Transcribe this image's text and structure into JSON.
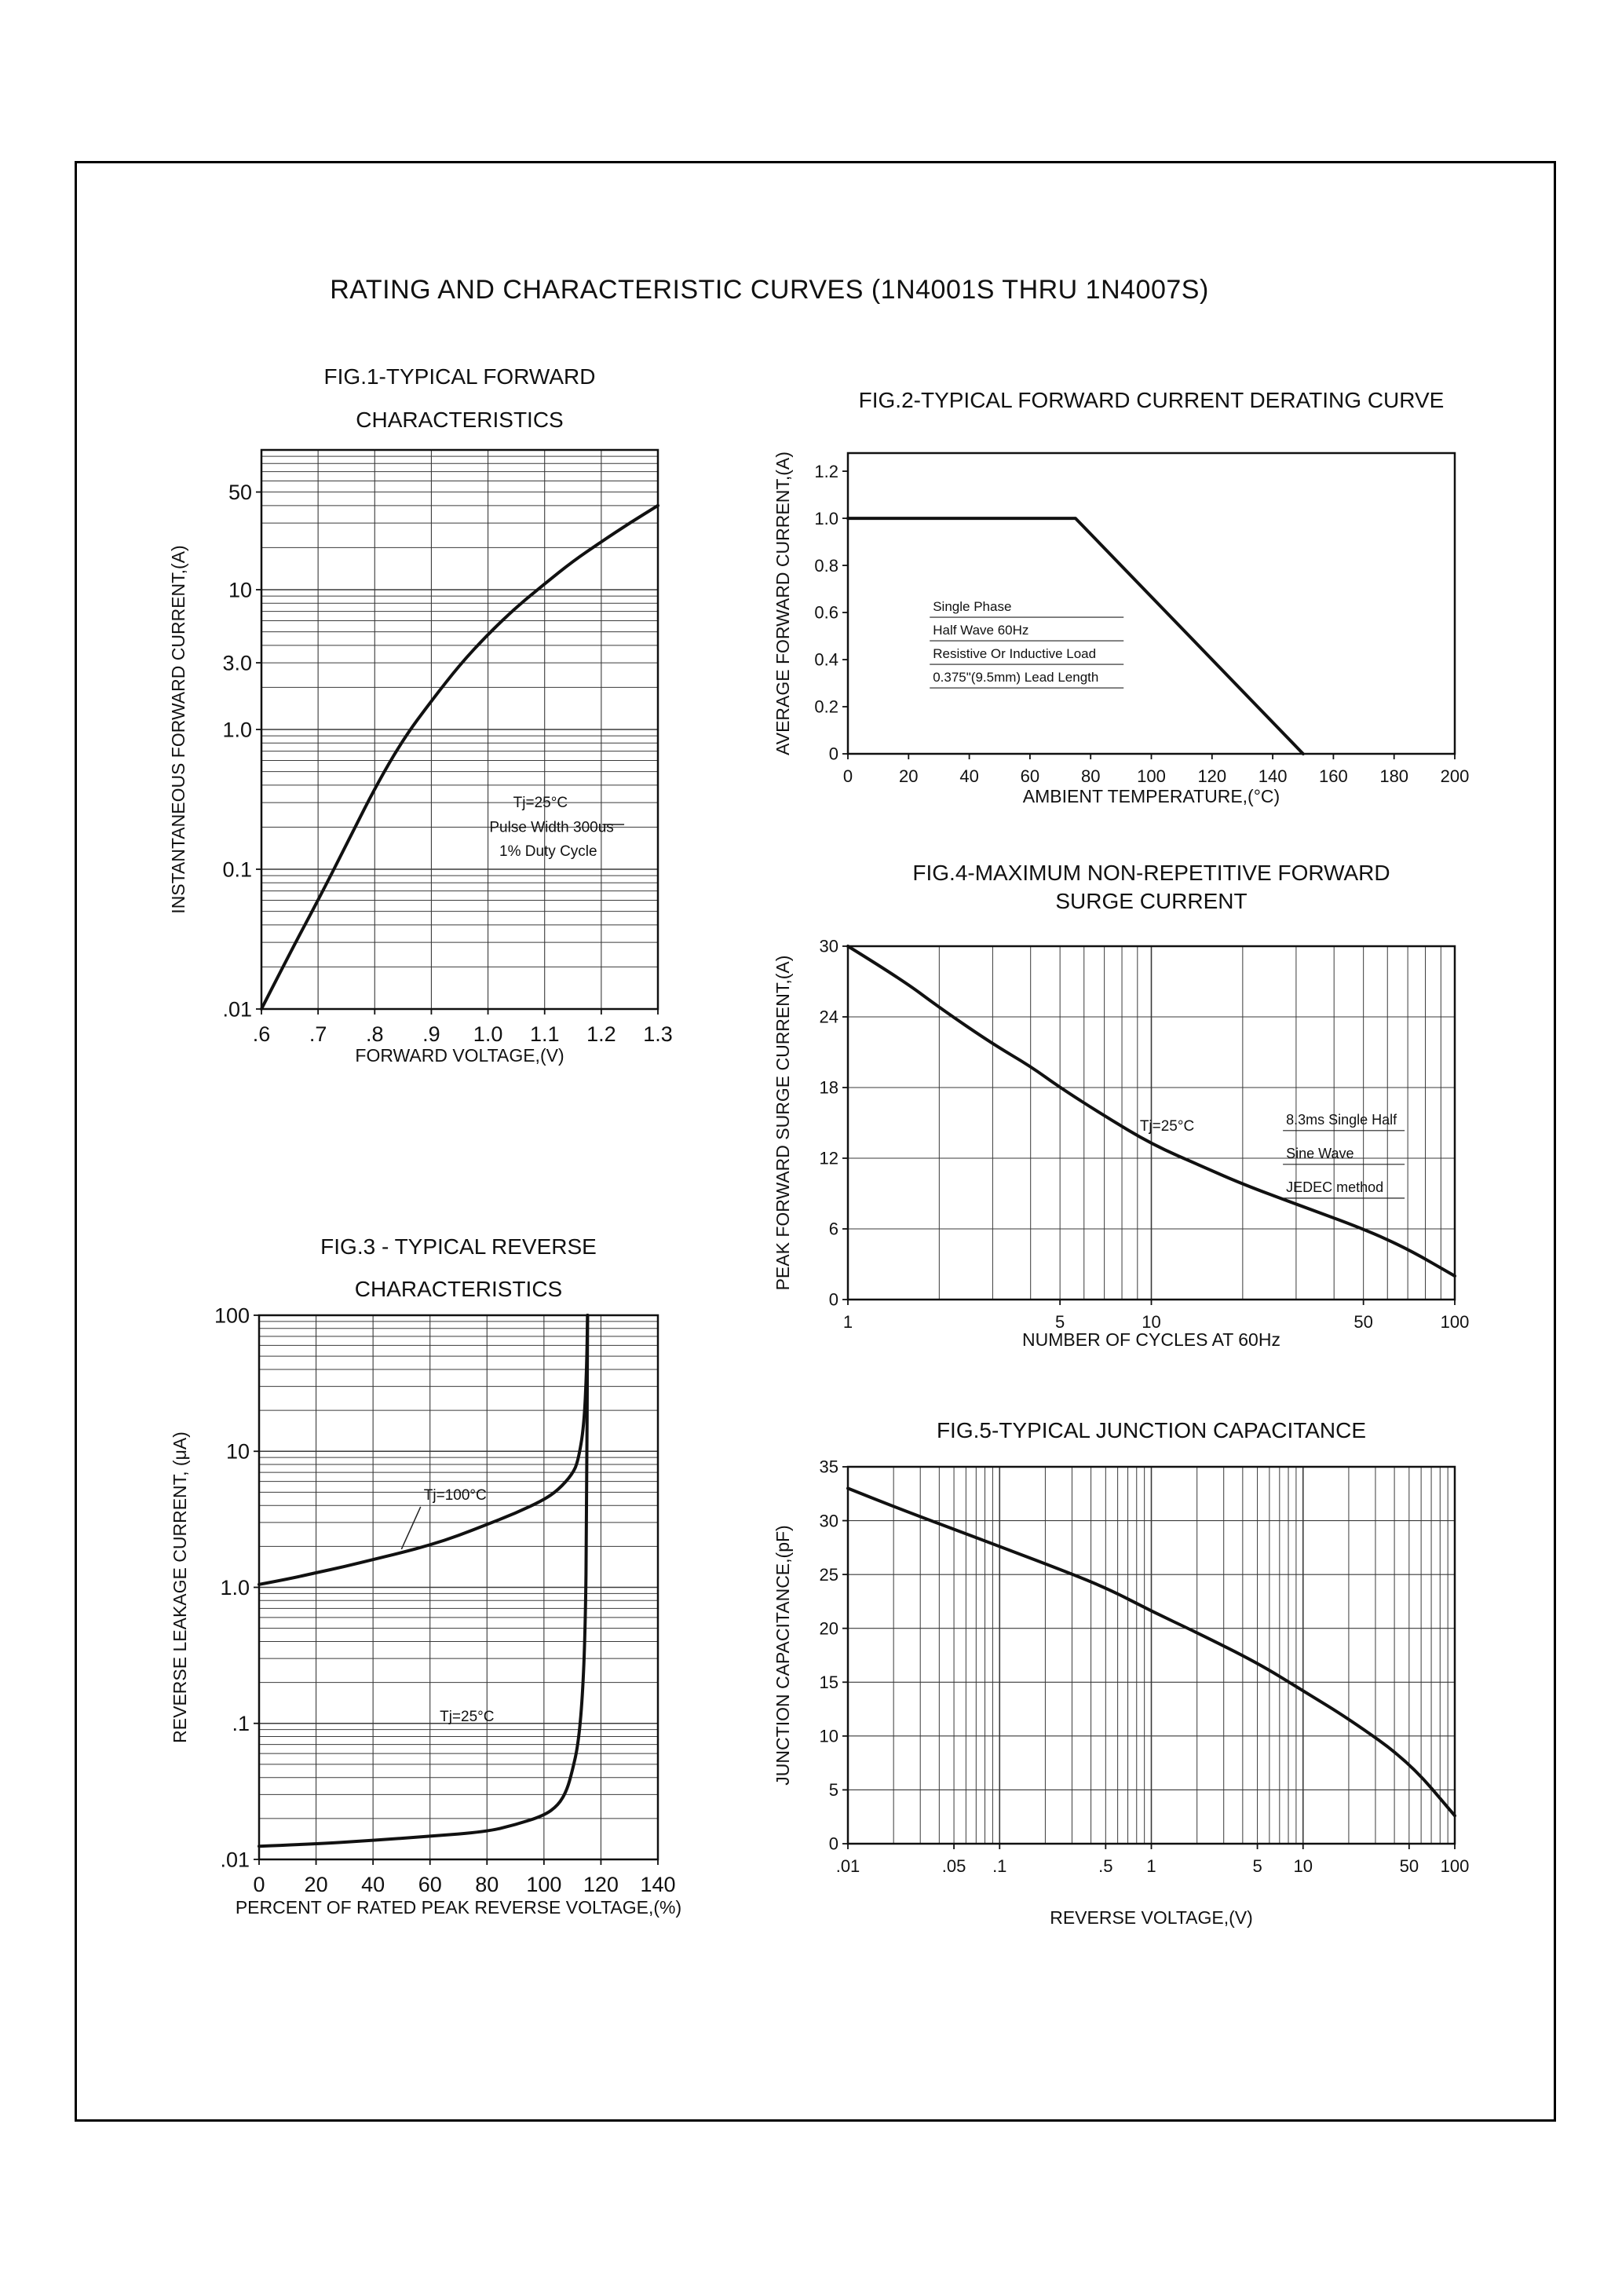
{
  "page": {
    "title": "RATING AND CHARACTERISTIC CURVES (1N4001S THRU 1N4007S)"
  },
  "chart_data": [
    {
      "id": "fig1",
      "type": "line",
      "title_lines": [
        "FIG.1-TYPICAL FORWARD",
        "CHARACTERISTICS"
      ],
      "xlabel": "FORWARD VOLTAGE,(V)",
      "ylabel": "INSTANTANEOUS FORWARD CURRENT,(A)",
      "x_scale": "linear",
      "y_scale": "log",
      "xlim": [
        0.6,
        1.3
      ],
      "ylim": [
        0.01,
        100
      ],
      "grid": {
        "x": "ticks",
        "y": "log"
      },
      "legend": "none",
      "x_ticks": [
        {
          "v": 0.6,
          "label": ".6"
        },
        {
          "v": 0.7,
          "label": ".7"
        },
        {
          "v": 0.8,
          "label": ".8"
        },
        {
          "v": 0.9,
          "label": ".9"
        },
        {
          "v": 1.0,
          "label": "1.0"
        },
        {
          "v": 1.1,
          "label": "1.1"
        },
        {
          "v": 1.2,
          "label": "1.2"
        },
        {
          "v": 1.3,
          "label": "1.3"
        }
      ],
      "y_ticks": [
        {
          "v": 50,
          "label": "50"
        },
        {
          "v": 10,
          "label": "10"
        },
        {
          "v": 3,
          "label": "3.0"
        },
        {
          "v": 1,
          "label": "1.0"
        },
        {
          "v": 0.1,
          "label": "0.1"
        },
        {
          "v": 0.01,
          "label": ".01"
        }
      ],
      "series": [
        {
          "name": "Tj=25°C",
          "smooth": true,
          "points": [
            [
              0.6,
              0.01
            ],
            [
              0.65,
              0.025
            ],
            [
              0.7,
              0.06
            ],
            [
              0.75,
              0.15
            ],
            [
              0.8,
              0.38
            ],
            [
              0.85,
              0.85
            ],
            [
              0.9,
              1.6
            ],
            [
              0.95,
              2.9
            ],
            [
              1.0,
              4.8
            ],
            [
              1.05,
              7.5
            ],
            [
              1.1,
              11
            ],
            [
              1.15,
              16
            ],
            [
              1.2,
              22
            ],
            [
              1.25,
              30
            ],
            [
              1.3,
              40
            ]
          ]
        }
      ],
      "annotations": [
        {
          "text": "Tj=25°C",
          "fx": 0.635,
          "fy": 0.639,
          "size": 19
        },
        {
          "text": "Pulse Width 300us",
          "fx": 0.575,
          "fy": 0.683,
          "size": 19,
          "leader": [
            0.86,
            0.67,
            0.915,
            0.67
          ]
        },
        {
          "text": "1% Duty Cycle",
          "fx": 0.6,
          "fy": 0.726,
          "size": 19
        }
      ]
    },
    {
      "id": "fig2",
      "type": "line",
      "title_lines": [
        "FIG.2-TYPICAL FORWARD CURRENT DERATING CURVE"
      ],
      "xlabel": "AMBIENT TEMPERATURE,(°C)",
      "ylabel": "AVERAGE FORWARD CURRENT,(A)",
      "x_scale": "linear",
      "y_scale": "linear",
      "xlim": [
        0,
        200
      ],
      "ylim": [
        0,
        1.277
      ],
      "grid": {
        "x": "none",
        "y": "none"
      },
      "legend": "none",
      "x_ticks": [
        {
          "v": 0,
          "label": "0"
        },
        {
          "v": 20,
          "label": "20"
        },
        {
          "v": 40,
          "label": "40"
        },
        {
          "v": 60,
          "label": "60"
        },
        {
          "v": 80,
          "label": "80"
        },
        {
          "v": 100,
          "label": "100"
        },
        {
          "v": 120,
          "label": "120"
        },
        {
          "v": 140,
          "label": "140"
        },
        {
          "v": 160,
          "label": "160"
        },
        {
          "v": 180,
          "label": "180"
        },
        {
          "v": 200,
          "label": "200"
        }
      ],
      "y_ticks": [
        {
          "v": 1.2,
          "label": "1.2"
        },
        {
          "v": 1.0,
          "label": "1.0"
        },
        {
          "v": 0.8,
          "label": "0.8"
        },
        {
          "v": 0.6,
          "label": "0.6"
        },
        {
          "v": 0.4,
          "label": "0.4"
        },
        {
          "v": 0.2,
          "label": "0.2"
        },
        {
          "v": 0,
          "label": "0"
        }
      ],
      "series": [
        {
          "name": "derating",
          "smooth": false,
          "points": [
            [
              0,
              1.0
            ],
            [
              75,
              1.0
            ],
            [
              150,
              0
            ]
          ]
        }
      ],
      "annotations": [
        {
          "lines": [
            "Single Phase",
            "Half Wave 60Hz",
            "Resistive Or Inductive Load",
            "0.375\"(9.5mm) Lead Length"
          ],
          "fx": 0.14,
          "fy": 0.525,
          "lh": 0.0783,
          "ruled": true,
          "rule_w": 247,
          "size": 17
        }
      ]
    },
    {
      "id": "fig3",
      "type": "line",
      "title_lines": [
        "FIG.3 - TYPICAL REVERSE",
        "CHARACTERISTICS"
      ],
      "xlabel": "PERCENT OF RATED PEAK REVERSE VOLTAGE,(%)",
      "ylabel": "REVERSE LEAKAGE CURRENT, (μA)",
      "x_scale": "linear",
      "y_scale": "log",
      "xlim": [
        0,
        140
      ],
      "ylim": [
        0.01,
        100
      ],
      "grid": {
        "x": "ticks",
        "y": "log"
      },
      "legend": "none",
      "x_ticks": [
        {
          "v": 0,
          "label": "0"
        },
        {
          "v": 20,
          "label": "20"
        },
        {
          "v": 40,
          "label": "40"
        },
        {
          "v": 60,
          "label": "60"
        },
        {
          "v": 80,
          "label": "80"
        },
        {
          "v": 100,
          "label": "100"
        },
        {
          "v": 120,
          "label": "120"
        },
        {
          "v": 140,
          "label": "140"
        }
      ],
      "y_ticks": [
        {
          "v": 100,
          "label": "100"
        },
        {
          "v": 10,
          "label": "10"
        },
        {
          "v": 1,
          "label": "1.0"
        },
        {
          "v": 0.1,
          "label": ".1"
        },
        {
          "v": 0.01,
          "label": ".01"
        }
      ],
      "series": [
        {
          "name": "Tj=100°C",
          "smooth": true,
          "points": [
            [
              0,
              1.05
            ],
            [
              10,
              1.15
            ],
            [
              20,
              1.28
            ],
            [
              30,
              1.42
            ],
            [
              40,
              1.6
            ],
            [
              50,
              1.8
            ],
            [
              60,
              2.05
            ],
            [
              70,
              2.4
            ],
            [
              80,
              2.9
            ],
            [
              90,
              3.5
            ],
            [
              100,
              4.4
            ],
            [
              105,
              5.2
            ],
            [
              110,
              6.8
            ],
            [
              112,
              8.5
            ],
            [
              114,
              15
            ],
            [
              115,
              40
            ],
            [
              115.3,
              100
            ]
          ]
        },
        {
          "name": "Tj=25°C",
          "smooth": true,
          "points": [
            [
              0,
              0.0125
            ],
            [
              20,
              0.013
            ],
            [
              40,
              0.0138
            ],
            [
              60,
              0.0148
            ],
            [
              80,
              0.016
            ],
            [
              90,
              0.018
            ],
            [
              100,
              0.021
            ],
            [
              105,
              0.025
            ],
            [
              108,
              0.032
            ],
            [
              110,
              0.045
            ],
            [
              112,
              0.07
            ],
            [
              113.5,
              0.15
            ],
            [
              114.5,
              0.5
            ],
            [
              115,
              3
            ],
            [
              115.3,
              100
            ]
          ]
        }
      ],
      "annotations": [
        {
          "text": "Tj=100°C",
          "fx": 0.413,
          "fy": 0.339,
          "size": 19,
          "leader": [
            0.405,
            0.352,
            0.357,
            0.43
          ]
        },
        {
          "text": "Tj=25°C",
          "fx": 0.453,
          "fy": 0.746,
          "size": 19
        }
      ]
    },
    {
      "id": "fig4",
      "type": "line",
      "title_lines": [
        "FIG.4-MAXIMUM NON-REPETITIVE FORWARD",
        "SURGE CURRENT"
      ],
      "xlabel": "NUMBER OF CYCLES AT 60Hz",
      "ylabel": "PEAK FORWARD SURGE CURRENT,(A)",
      "x_scale": "log",
      "y_scale": "linear",
      "xlim": [
        1,
        100
      ],
      "ylim": [
        0,
        30
      ],
      "grid": {
        "x": "log",
        "y": "ticks"
      },
      "legend": "none",
      "x_ticks": [
        {
          "v": 1,
          "label": "1"
        },
        {
          "v": 5,
          "label": "5"
        },
        {
          "v": 10,
          "label": "10"
        },
        {
          "v": 50,
          "label": "50"
        },
        {
          "v": 100,
          "label": "100"
        }
      ],
      "y_ticks": [
        {
          "v": 30,
          "label": "30"
        },
        {
          "v": 24,
          "label": "24"
        },
        {
          "v": 18,
          "label": "18"
        },
        {
          "v": 12,
          "label": "12"
        },
        {
          "v": 6,
          "label": "6"
        },
        {
          "v": 0,
          "label": "0"
        }
      ],
      "series": [
        {
          "name": "surge",
          "smooth": true,
          "points": [
            [
              1,
              30
            ],
            [
              1.5,
              27.2
            ],
            [
              2,
              24.8
            ],
            [
              3,
              21.7
            ],
            [
              4,
              19.8
            ],
            [
              5,
              18
            ],
            [
              7,
              15.6
            ],
            [
              10,
              13.2
            ],
            [
              15,
              11.2
            ],
            [
              20,
              9.8
            ],
            [
              30,
              8.1
            ],
            [
              50,
              6.0
            ],
            [
              70,
              4.3
            ],
            [
              100,
              2.0
            ]
          ]
        }
      ],
      "annotations": [
        {
          "text": "Tj=25°C",
          "fx": 0.481,
          "fy": 0.522,
          "size": 19
        },
        {
          "lines": [
            "8.3ms Single Half",
            "Sine Wave",
            "JEDEC method"
          ],
          "fx": 0.722,
          "fy": 0.504,
          "lh": 0.0956,
          "ruled": true,
          "rule_w": 155,
          "size": 18
        }
      ]
    },
    {
      "id": "fig5",
      "type": "line",
      "title_lines": [
        "FIG.5-TYPICAL JUNCTION CAPACITANCE"
      ],
      "xlabel": "REVERSE VOLTAGE,(V)",
      "ylabel": "JUNCTION CAPACITANCE,(pF)",
      "x_scale": "log",
      "y_scale": "linear",
      "xlim": [
        0.01,
        100
      ],
      "ylim": [
        0,
        35
      ],
      "grid": {
        "x": "log",
        "y": "ticks"
      },
      "legend": "none",
      "x_ticks": [
        {
          "v": 0.01,
          "label": ".01"
        },
        {
          "v": 0.05,
          "label": ".05"
        },
        {
          "v": 0.1,
          "label": ".1"
        },
        {
          "v": 0.5,
          "label": ".5"
        },
        {
          "v": 1,
          "label": "1"
        },
        {
          "v": 5,
          "label": "5"
        },
        {
          "v": 10,
          "label": "10"
        },
        {
          "v": 50,
          "label": "50"
        },
        {
          "v": 100,
          "label": "100"
        }
      ],
      "y_ticks": [
        {
          "v": 35,
          "label": "35"
        },
        {
          "v": 30,
          "label": "30"
        },
        {
          "v": 25,
          "label": "25"
        },
        {
          "v": 20,
          "label": "20"
        },
        {
          "v": 15,
          "label": "15"
        },
        {
          "v": 10,
          "label": "10"
        },
        {
          "v": 5,
          "label": "5"
        },
        {
          "v": 0,
          "label": "0"
        }
      ],
      "series": [
        {
          "name": "capacitance",
          "smooth": true,
          "points": [
            [
              0.01,
              33
            ],
            [
              0.02,
              31.3
            ],
            [
              0.05,
              29.2
            ],
            [
              0.1,
              27.6
            ],
            [
              0.2,
              26
            ],
            [
              0.5,
              23.8
            ],
            [
              1,
              21.6
            ],
            [
              2,
              19.6
            ],
            [
              5,
              16.8
            ],
            [
              10,
              14.2
            ],
            [
              20,
              11.6
            ],
            [
              50,
              7.6
            ],
            [
              100,
              2.6
            ]
          ]
        }
      ],
      "annotations": []
    }
  ]
}
